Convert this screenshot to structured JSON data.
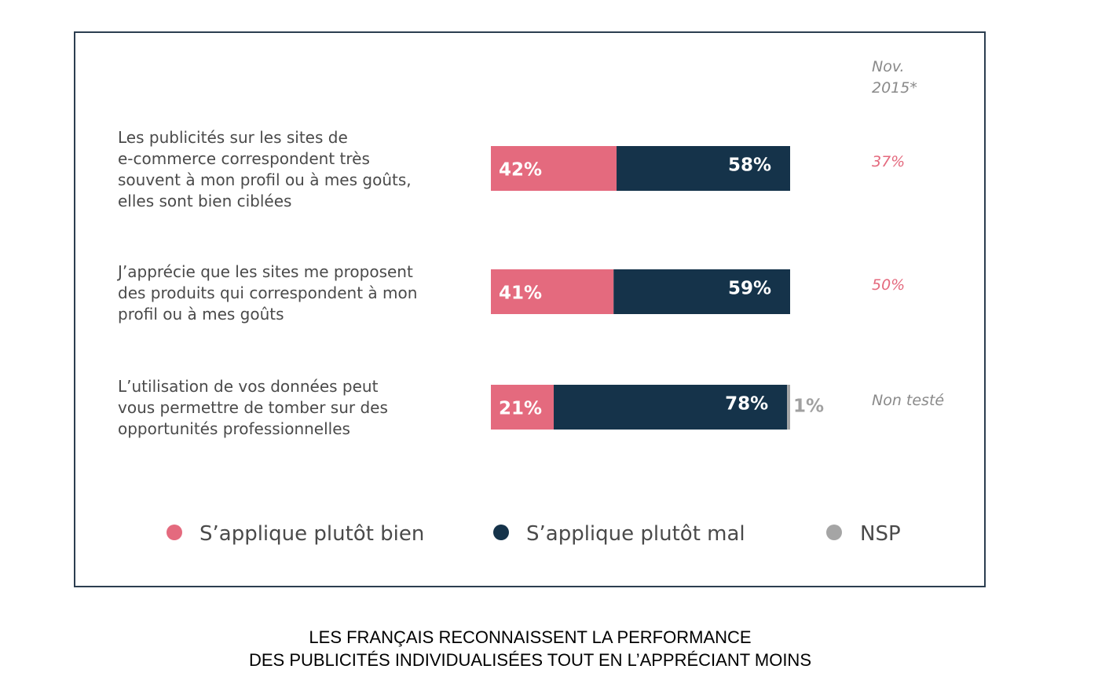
{
  "colors": {
    "bien": "#e46a7e",
    "mal": "#15334a",
    "nsp": "#a5a5a5",
    "ref": "#e46a7e",
    "ref_neutral": "#8a8a8a"
  },
  "ref_header": [
    "Nov.",
    "2015*"
  ],
  "chart_data": {
    "type": "bar",
    "orientation": "horizontal",
    "stacked": true,
    "categories": [
      [
        "Les publicités sur les sites de",
        "e-commerce correspondent très",
        "souvent à mon profil ou à mes goûts,",
        "elles sont bien ciblées"
      ],
      [
        "J’apprécie que les sites me proposent",
        "des produits qui correspondent à mon",
        "profil ou à mes goûts"
      ],
      [
        "L’utilisation de vos données peut",
        "vous permettre de tomber sur des",
        "opportunités professionnelles"
      ]
    ],
    "series": [
      {
        "name": "S’applique plutôt bien",
        "values": [
          42,
          41,
          21
        ],
        "labels": [
          "42%",
          "41%",
          "21%"
        ]
      },
      {
        "name": "S’applique plutôt mal",
        "values": [
          58,
          59,
          78
        ],
        "labels": [
          "58%",
          "59%",
          "78%"
        ]
      },
      {
        "name": "NSP",
        "values": [
          0,
          0,
          1
        ],
        "labels": [
          "",
          "",
          "1%"
        ]
      }
    ],
    "reference": [
      "37%",
      "50%",
      "Non testé"
    ],
    "xlim": [
      0,
      100
    ],
    "legend_position": "bottom"
  },
  "caption": [
    "LES FRANÇAIS RECONNAISSENT LA PERFORMANCE",
    "DES PUBLICITÉS INDIVIDUALISÉES TOUT EN L’APPRÉCIANT MOINS"
  ]
}
